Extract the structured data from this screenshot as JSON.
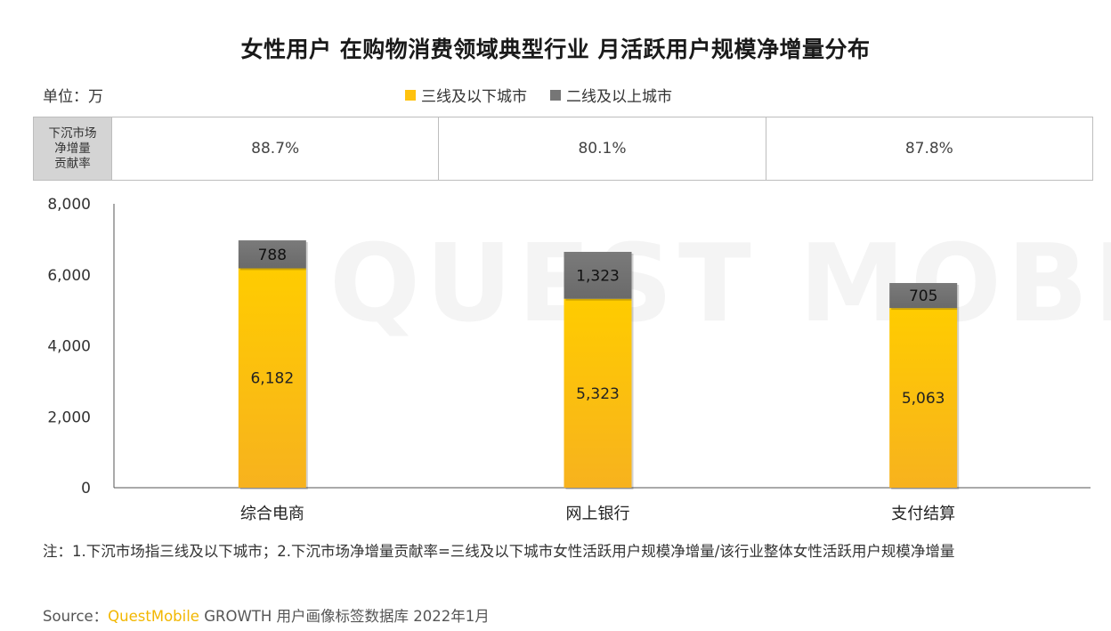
{
  "title": "女性用户 在购物消费领域典型行业 月活跃用户规模净增量分布",
  "unit": "单位：万",
  "watermark_text": "QUEST MOBILE",
  "ratio_row": {
    "header_lines": [
      "下沉市场",
      "净增量",
      "贡献率"
    ],
    "values": [
      "88.7%",
      "80.1%",
      "87.8%"
    ]
  },
  "chart_data": {
    "type": "bar",
    "stacked": true,
    "categories": [
      "综合电商",
      "网上银行",
      "支付结算"
    ],
    "series": [
      {
        "name": "三线及以下城市",
        "color": "#ffc20e",
        "values": [
          6182,
          5323,
          5063
        ],
        "labels": [
          "6,182",
          "5,323",
          "5,063"
        ]
      },
      {
        "name": "二线及以上城市",
        "color": "#767676",
        "values": [
          788,
          1323,
          705
        ],
        "labels": [
          "788",
          "1,323",
          "705"
        ]
      }
    ],
    "ylim": [
      0,
      8000
    ],
    "yticks": [
      0,
      2000,
      4000,
      6000,
      8000
    ],
    "ytick_labels": [
      "0",
      "2,000",
      "4,000",
      "6,000",
      "8,000"
    ],
    "grid": false,
    "legend_position": "top-center"
  },
  "note": "注：1.下沉市场指三线及以下城市；2.下沉市场净增量贡献率=三线及以下城市女性活跃用户规模净增量/该行业整体女性活跃用户规模净增量",
  "source": {
    "prefix": "Source：",
    "brand": "QuestMobile",
    "suffix": " GROWTH 用户画像标签数据库 2022年1月"
  }
}
